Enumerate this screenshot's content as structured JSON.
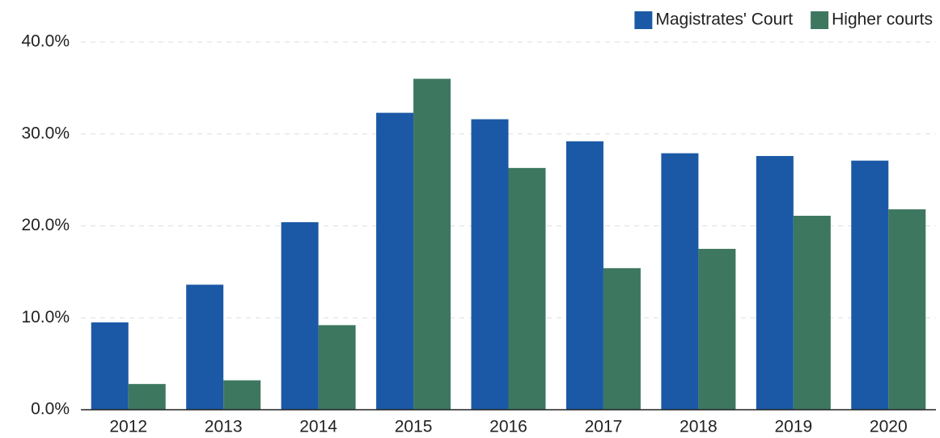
{
  "chart_data": {
    "type": "bar",
    "categories": [
      "2012",
      "2013",
      "2014",
      "2015",
      "2016",
      "2017",
      "2018",
      "2019",
      "2020"
    ],
    "series": [
      {
        "name": "Magistrates' Court",
        "color": "#1b59a6",
        "values": [
          9.5,
          13.6,
          20.4,
          32.3,
          31.6,
          29.2,
          27.9,
          27.6,
          27.1
        ]
      },
      {
        "name": "Higher courts",
        "color": "#3e7760",
        "values": [
          2.8,
          3.2,
          9.2,
          36.0,
          26.3,
          15.4,
          17.5,
          21.1,
          21.8
        ]
      }
    ],
    "ylim": [
      0,
      40
    ],
    "yticks": [
      {
        "value": 0,
        "label": "0.0%"
      },
      {
        "value": 10,
        "label": "10.0%"
      },
      {
        "value": 20,
        "label": "20.0%"
      },
      {
        "value": 30,
        "label": "30.0%"
      },
      {
        "value": 40,
        "label": "40.0%"
      }
    ],
    "grid": true,
    "legend": "top-right"
  }
}
